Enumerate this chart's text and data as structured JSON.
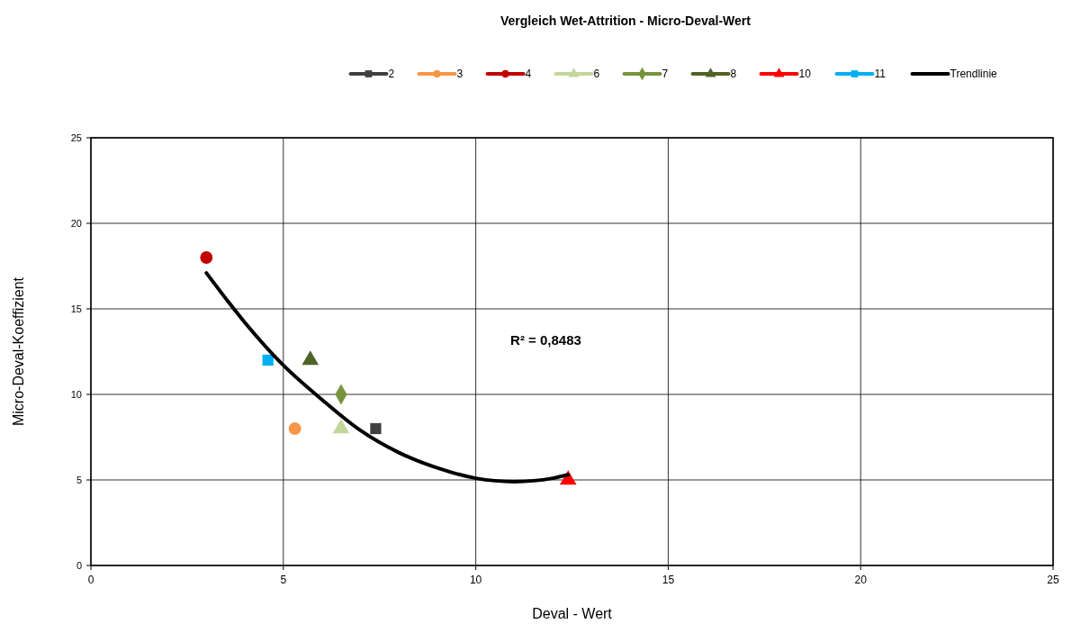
{
  "chart_data": {
    "type": "scatter",
    "title": "Vergleich Wet-Attrition - Micro-Deval-Wert",
    "xlabel": "Deval - Wert",
    "ylabel": "Micro-Deval-Koeffizient",
    "xlim": [
      0,
      25
    ],
    "xticks": [
      0,
      5,
      10,
      15,
      20,
      25
    ],
    "ylim": [
      0,
      25
    ],
    "yticks": [
      0,
      5,
      10,
      15,
      20,
      25
    ],
    "grid": true,
    "legend": "top",
    "annotations": [
      "R² = 0,8483"
    ],
    "series": [
      {
        "name": "2",
        "color": "#404040",
        "marker": "square",
        "x": [
          7.4
        ],
        "values": [
          8
        ]
      },
      {
        "name": "3",
        "color": "#f79646",
        "marker": "circle",
        "x": [
          5.3
        ],
        "values": [
          8
        ]
      },
      {
        "name": "4",
        "color": "#c00000",
        "marker": "circle",
        "x": [
          3
        ],
        "values": [
          18
        ]
      },
      {
        "name": "6",
        "color": "#c3d69b",
        "marker": "triangle",
        "x": [
          6.5
        ],
        "values": [
          8
        ]
      },
      {
        "name": "7",
        "color": "#77933c",
        "marker": "diamond",
        "x": [
          6.5
        ],
        "values": [
          10
        ]
      },
      {
        "name": "8",
        "color": "#4f6228",
        "marker": "triangle",
        "x": [
          5.7
        ],
        "values": [
          12
        ]
      },
      {
        "name": "10",
        "color": "#ff0000",
        "marker": "triangle",
        "x": [
          12.4
        ],
        "values": [
          5
        ]
      },
      {
        "name": "11",
        "color": "#00b0f0",
        "marker": "square",
        "x": [
          4.6
        ],
        "values": [
          12
        ]
      },
      {
        "name": "Trendlinie",
        "type": "line",
        "color": "#000000",
        "marker": "none",
        "x": [
          3,
          4,
          5,
          6,
          7,
          8,
          9,
          10,
          11,
          12,
          12.4
        ],
        "values": [
          17.1,
          14.2,
          11.7,
          9.7,
          7.9,
          6.6,
          5.7,
          5.1,
          4.9,
          5.1,
          5.3
        ]
      }
    ]
  }
}
